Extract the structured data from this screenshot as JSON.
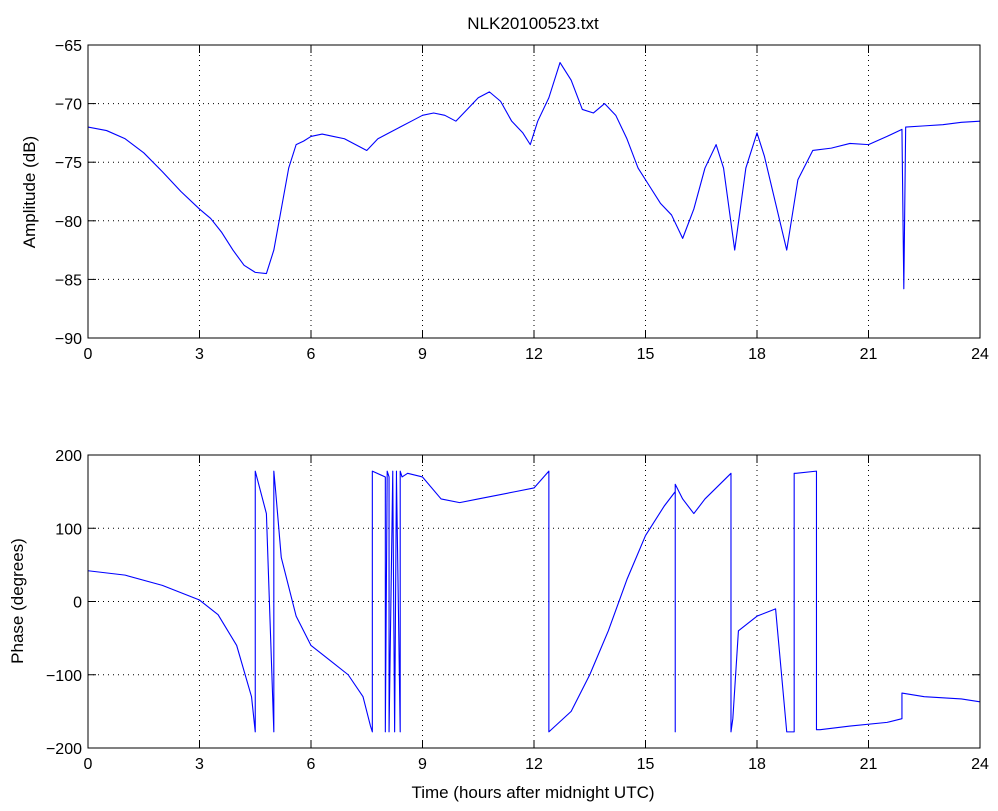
{
  "figure": {
    "title": "NLK20100523.txt",
    "line_color": "#0000ff",
    "background": "#ffffff",
    "grid": "dotted"
  },
  "chart_data": [
    {
      "type": "line",
      "title": "NLK20100523.txt",
      "xlabel": "",
      "ylabel": "Amplitude (dB)",
      "xlim": [
        0,
        24
      ],
      "ylim": [
        -90,
        -65
      ],
      "xticks": [
        0,
        3,
        6,
        9,
        12,
        15,
        18,
        21,
        24
      ],
      "yticks": [
        -90,
        -85,
        -80,
        -75,
        -70,
        -65
      ],
      "grid": true,
      "series": [
        {
          "x": [
            0,
            0.5,
            1,
            1.5,
            2,
            2.5,
            3,
            3.3,
            3.6,
            3.9,
            4.2,
            4.5,
            4.8,
            5.0,
            5.2,
            5.4,
            5.6,
            5.8,
            6.0,
            6.3,
            6.6,
            6.9,
            7.2,
            7.5,
            7.8,
            8.1,
            8.4,
            8.7,
            9.0,
            9.3,
            9.6,
            9.9,
            10.2,
            10.5,
            10.8,
            11.1,
            11.4,
            11.7,
            11.9,
            12.1,
            12.4,
            12.7,
            13.0,
            13.3,
            13.6,
            13.9,
            14.2,
            14.5,
            14.8,
            15.1,
            15.4,
            15.7,
            16.0,
            16.3,
            16.6,
            16.9,
            17.1,
            17.4,
            17.7,
            18.0,
            18.2,
            18.5,
            18.8,
            19.1,
            19.5,
            20.0,
            20.5,
            21.0,
            21.5,
            21.9,
            21.95,
            22.0,
            22.5,
            23.0,
            23.5,
            24.0
          ],
          "y": [
            -72.0,
            -72.3,
            -73.0,
            -74.2,
            -75.8,
            -77.5,
            -79.0,
            -79.8,
            -81.0,
            -82.5,
            -83.8,
            -84.4,
            -84.5,
            -82.5,
            -79.0,
            -75.5,
            -73.5,
            -73.2,
            -72.8,
            -72.6,
            -72.8,
            -73.0,
            -73.5,
            -74.0,
            -73.0,
            -72.5,
            -72.0,
            -71.5,
            -71.0,
            -70.8,
            -71.0,
            -71.5,
            -70.5,
            -69.5,
            -69.0,
            -69.8,
            -71.5,
            -72.5,
            -73.5,
            -71.5,
            -69.5,
            -66.5,
            -68.0,
            -70.5,
            -70.8,
            -70.0,
            -71.0,
            -73.0,
            -75.5,
            -77.0,
            -78.5,
            -79.5,
            -81.5,
            -79.0,
            -75.5,
            -73.5,
            -75.5,
            -82.5,
            -75.5,
            -72.5,
            -74.5,
            -78.5,
            -82.5,
            -76.5,
            -74.0,
            -73.8,
            -73.4,
            -73.5,
            -72.8,
            -72.2,
            -85.8,
            -72.0,
            -71.9,
            -71.8,
            -71.6,
            -71.5
          ]
        }
      ]
    },
    {
      "type": "line",
      "title": "",
      "xlabel": "Time (hours after midnight UTC)",
      "ylabel": "Phase (degrees)",
      "xlim": [
        0,
        24
      ],
      "ylim": [
        -200,
        200
      ],
      "xticks": [
        0,
        3,
        6,
        9,
        12,
        15,
        18,
        21,
        24
      ],
      "yticks": [
        -200,
        -100,
        0,
        100,
        200
      ],
      "grid": true,
      "series": [
        {
          "x": [
            0,
            1,
            2,
            3,
            3.5,
            4.0,
            4.4,
            4.5,
            4.5,
            4.8,
            5.0,
            5.0,
            5.05,
            5.2,
            5.6,
            6.0,
            6.5,
            7.0,
            7.4,
            7.6,
            7.65,
            7.65,
            8.0,
            8.0,
            8.05,
            8.1,
            8.1,
            8.2,
            8.2,
            8.25,
            8.3,
            8.3,
            8.4,
            8.4,
            8.45,
            8.6,
            9.0,
            9.5,
            10.0,
            10.5,
            11.0,
            11.5,
            12.0,
            12.4,
            12.4,
            13.0,
            13.5,
            14.0,
            14.5,
            15.0,
            15.5,
            15.8,
            15.8,
            15.8,
            16.0,
            16.3,
            16.6,
            17.0,
            17.3,
            17.3,
            17.35,
            17.5,
            18.0,
            18.5,
            18.8,
            19.0,
            19.0,
            19.05,
            19.6,
            19.6,
            19.7,
            20.5,
            21.5,
            21.9,
            21.9,
            22.5,
            23.5,
            24.0
          ],
          "y": [
            42,
            36,
            22,
            2,
            -18,
            -60,
            -130,
            -178,
            178,
            120,
            -178,
            178,
            150,
            60,
            -20,
            -60,
            -80,
            -100,
            -130,
            -170,
            -178,
            178,
            170,
            -178,
            178,
            170,
            -178,
            178,
            170,
            -178,
            178,
            170,
            -178,
            178,
            170,
            175,
            170,
            140,
            135,
            140,
            145,
            150,
            155,
            178,
            -178,
            -150,
            -100,
            -40,
            30,
            90,
            130,
            150,
            -178,
            160,
            140,
            120,
            140,
            160,
            175,
            -178,
            -160,
            -40,
            -20,
            -10,
            -178,
            -178,
            175,
            175,
            178,
            -175,
            -175,
            -170,
            -165,
            -160,
            -125,
            -130,
            -133,
            -137
          ]
        }
      ]
    }
  ]
}
